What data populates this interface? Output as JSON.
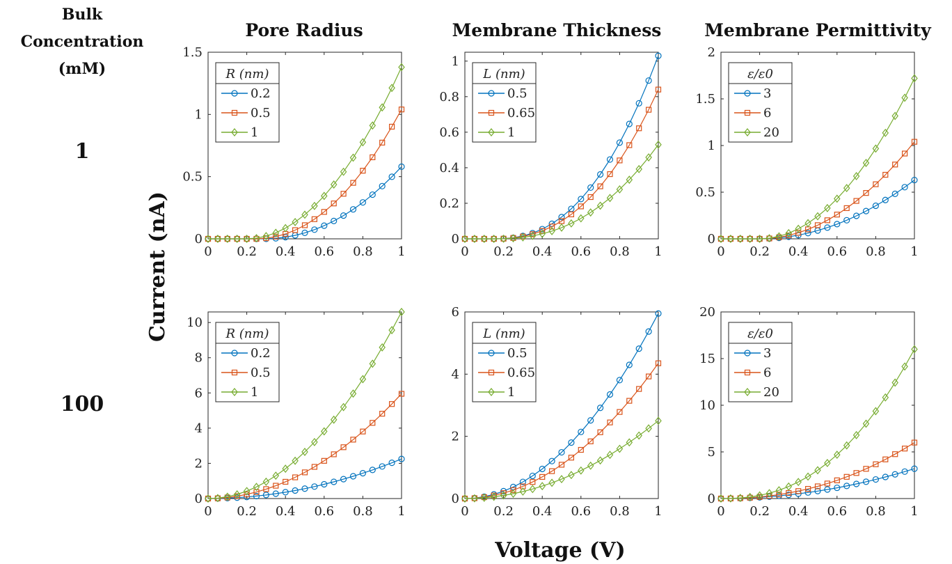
{
  "header": {
    "line1": "Bulk",
    "line2": "Concentration",
    "line3": "(mM)"
  },
  "column_titles": [
    "Pore Radius",
    "Membrane Thickness",
    "Membrane Permittivity"
  ],
  "row_labels": [
    "1",
    "100"
  ],
  "xlabel": "Voltage (V)",
  "ylabel": "Current (nA)",
  "colors": {
    "series1": "#0072BD",
    "series2": "#D95319",
    "series3": "#77AC30"
  },
  "chart_data": [
    {
      "type": "line",
      "title": "Pore Radius",
      "row_label": "1",
      "xlim": [
        0,
        1
      ],
      "ylim": [
        0,
        1.5
      ],
      "xticks": [
        "0",
        "0.2",
        "0.4",
        "0.6",
        "0.8",
        "1"
      ],
      "yticks": [
        "0",
        "0.5",
        "1",
        "1.5"
      ],
      "ytick_values": [
        0,
        0.5,
        1,
        1.5
      ],
      "legend_title": "R (nm)",
      "legend_location": "top-left",
      "x_range": [
        0,
        1
      ],
      "points": 21,
      "series": [
        {
          "name": "0.2",
          "marker": "circle",
          "end_value": 0.58,
          "onset": 0.28,
          "power": 2.1
        },
        {
          "name": "0.5",
          "marker": "square",
          "end_value": 1.04,
          "onset": 0.24,
          "power": 2.1
        },
        {
          "name": "1",
          "marker": "diamond",
          "end_value": 1.38,
          "onset": 0.2,
          "power": 2.0
        }
      ]
    },
    {
      "type": "line",
      "title": "Membrane Thickness",
      "row_label": "1",
      "xlim": [
        0,
        1
      ],
      "ylim": [
        0,
        1.05
      ],
      "xticks": [
        "0",
        "0.2",
        "0.4",
        "0.6",
        "0.8",
        "1"
      ],
      "yticks": [
        "0",
        "0.2",
        "0.4",
        "0.6",
        "0.8",
        "1"
      ],
      "ytick_values": [
        0,
        0.2,
        0.4,
        0.6,
        0.8,
        1
      ],
      "legend_title": "L (nm)",
      "legend_location": "top-left",
      "x_range": [
        0,
        1
      ],
      "points": 21,
      "series": [
        {
          "name": "0.5",
          "marker": "circle",
          "end_value": 1.03,
          "onset": 0.15,
          "power": 2.4
        },
        {
          "name": "0.65",
          "marker": "square",
          "end_value": 0.84,
          "onset": 0.15,
          "power": 2.4
        },
        {
          "name": "1",
          "marker": "diamond",
          "end_value": 0.53,
          "onset": 0.15,
          "power": 2.4
        }
      ]
    },
    {
      "type": "line",
      "title": "Membrane Permittivity",
      "row_label": "1",
      "xlim": [
        0,
        1
      ],
      "ylim": [
        0,
        2
      ],
      "xticks": [
        "0",
        "0.2",
        "0.4",
        "0.6",
        "0.8",
        "1"
      ],
      "yticks": [
        "0",
        "0.5",
        "1",
        "1.5",
        "2"
      ],
      "ytick_values": [
        0,
        0.5,
        1,
        1.5,
        2
      ],
      "legend_title": "ε/ε0",
      "legend_location": "top-left",
      "x_range": [
        0,
        1
      ],
      "points": 21,
      "series": [
        {
          "name": "3",
          "marker": "circle",
          "end_value": 0.63,
          "onset": 0.2,
          "power": 2.0
        },
        {
          "name": "6",
          "marker": "square",
          "end_value": 1.04,
          "onset": 0.2,
          "power": 2.0
        },
        {
          "name": "20",
          "marker": "diamond",
          "end_value": 1.72,
          "onset": 0.2,
          "power": 2.0
        }
      ]
    },
    {
      "type": "line",
      "title": "",
      "row_label": "100",
      "xlim": [
        0,
        1
      ],
      "ylim": [
        0,
        10.6
      ],
      "xticks": [
        "0",
        "0.2",
        "0.4",
        "0.6",
        "0.8",
        "1"
      ],
      "yticks": [
        "0",
        "2",
        "4",
        "6",
        "8",
        "10"
      ],
      "ytick_values": [
        0,
        2,
        4,
        6,
        8,
        10
      ],
      "legend_title": "R (nm)",
      "legend_location": "top-left",
      "x_range": [
        0,
        1
      ],
      "points": 21,
      "series": [
        {
          "name": "0.2",
          "marker": "circle",
          "end_value": 2.25,
          "onset": 0.0,
          "power": 2.0
        },
        {
          "name": "0.5",
          "marker": "square",
          "end_value": 5.95,
          "onset": 0.0,
          "power": 2.0
        },
        {
          "name": "1",
          "marker": "diamond",
          "end_value": 10.6,
          "onset": 0.0,
          "power": 2.0
        }
      ]
    },
    {
      "type": "line",
      "title": "",
      "row_label": "100",
      "xlim": [
        0,
        1
      ],
      "ylim": [
        0,
        6
      ],
      "xticks": [
        "0",
        "0.2",
        "0.4",
        "0.6",
        "0.8",
        "1"
      ],
      "yticks": [
        "0",
        "2",
        "4",
        "6"
      ],
      "ytick_values": [
        0,
        2,
        4,
        6
      ],
      "legend_title": "L (nm)",
      "legend_location": "top-left",
      "x_range": [
        0,
        1
      ],
      "points": 21,
      "series": [
        {
          "name": "0.5",
          "marker": "circle",
          "end_value": 5.95,
          "onset": 0.0,
          "power": 2.0
        },
        {
          "name": "0.65",
          "marker": "square",
          "end_value": 4.35,
          "onset": 0.0,
          "power": 2.0
        },
        {
          "name": "1",
          "marker": "diamond",
          "end_value": 2.5,
          "onset": 0.0,
          "power": 2.0
        }
      ]
    },
    {
      "type": "line",
      "title": "",
      "row_label": "100",
      "xlim": [
        0,
        1
      ],
      "ylim": [
        0,
        20
      ],
      "xticks": [
        "0",
        "0.2",
        "0.4",
        "0.6",
        "0.8",
        "1"
      ],
      "yticks": [
        "0",
        "5",
        "10",
        "15",
        "20"
      ],
      "ytick_values": [
        0,
        5,
        10,
        15,
        20
      ],
      "legend_title": "ε/ε0",
      "legend_location": "top-left",
      "x_range": [
        0,
        1
      ],
      "points": 21,
      "series": [
        {
          "name": "3",
          "marker": "circle",
          "end_value": 3.2,
          "onset": 0.0,
          "power": 2.0
        },
        {
          "name": "6",
          "marker": "square",
          "end_value": 6.0,
          "onset": 0.0,
          "power": 2.2
        },
        {
          "name": "20",
          "marker": "diamond",
          "end_value": 16.0,
          "onset": 0.0,
          "power": 2.4
        }
      ]
    }
  ]
}
